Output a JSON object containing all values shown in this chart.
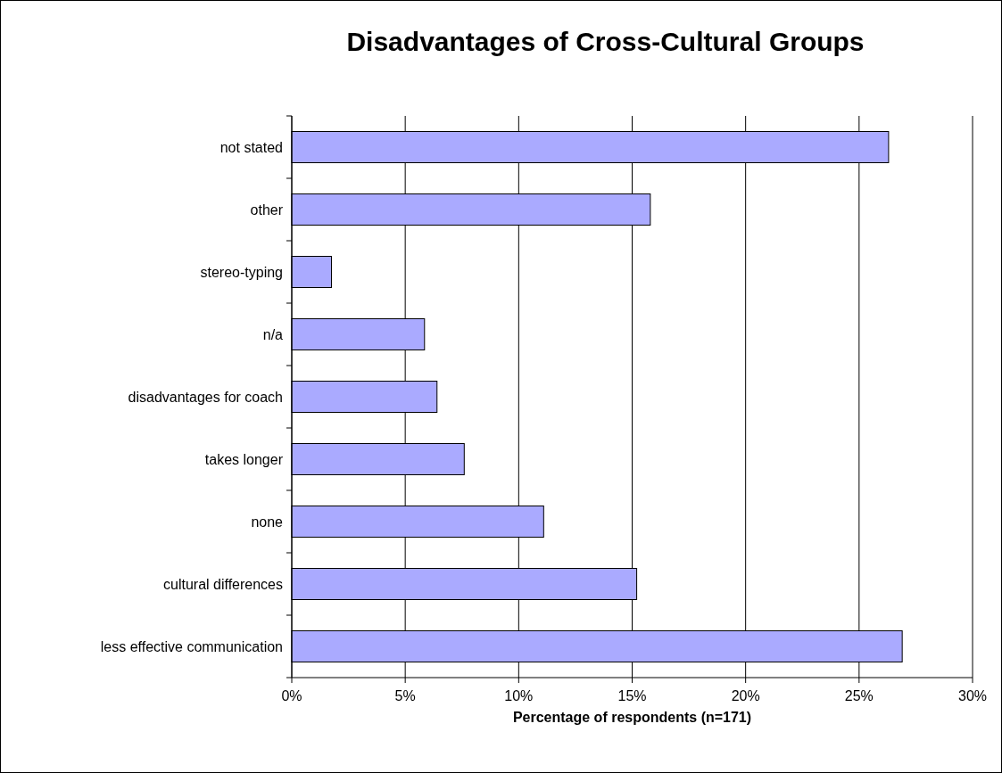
{
  "chart_data": {
    "type": "bar",
    "orientation": "horizontal",
    "title": "Disadvantages of Cross-Cultural Groups",
    "xlabel": "Percentage of respondents (n=171)",
    "categories": [
      "not stated",
      "other",
      "stereo-typing",
      "n/a",
      "disadvantages for coach",
      "takes longer",
      "none",
      "cultural differences",
      "less effective communication"
    ],
    "values": [
      26.3,
      15.8,
      1.75,
      5.85,
      6.4,
      7.6,
      11.1,
      15.2,
      26.9
    ],
    "color": "#aaaaff",
    "xlim": [
      0,
      30
    ],
    "xticks": [
      {
        "value": 0,
        "label": "0%"
      },
      {
        "value": 5,
        "label": "5%"
      },
      {
        "value": 10,
        "label": "10%"
      },
      {
        "value": 15,
        "label": "15%"
      },
      {
        "value": 20,
        "label": "20%"
      },
      {
        "value": 25,
        "label": "25%"
      },
      {
        "value": 30,
        "label": "30%"
      }
    ],
    "grid": "x"
  }
}
